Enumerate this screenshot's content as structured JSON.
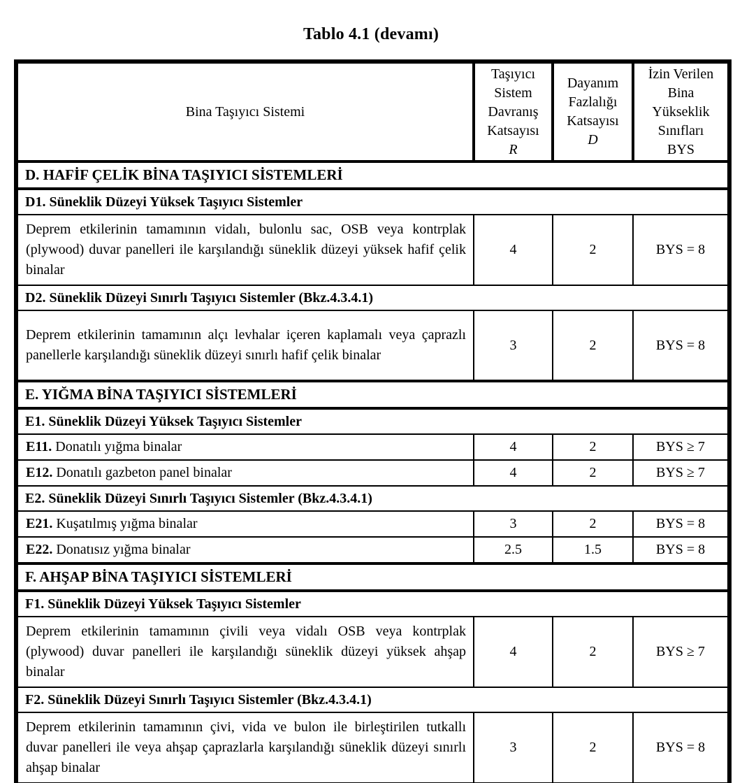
{
  "colors": {
    "text": "#000000",
    "background": "#ffffff",
    "border": "#000000"
  },
  "title": "Tablo 4.1 (devamı)",
  "header": {
    "col1": "Bina Taşıyıcı Sistemi",
    "col2": {
      "l1": "Taşıyıcı",
      "l2": "Sistem",
      "l3": "Davranış",
      "l4": "Katsayısı",
      "sym": "R"
    },
    "col3": {
      "l1": "Dayanım",
      "l2": "Fazlalığı",
      "l3": "Katsayısı",
      "sym": "D"
    },
    "col4": {
      "l1": "İzin Verilen",
      "l2": "Bina",
      "l3": "Yükseklik",
      "l4": "Sınıfları",
      "l5": "BYS"
    }
  },
  "rows": {
    "d": {
      "label": "D. HAFİF ÇELİK BİNA TAŞIYICI SİSTEMLERİ"
    },
    "d1": {
      "label": "D1. Süneklik Düzeyi Yüksek Taşıyıcı Sistemler"
    },
    "d1i": {
      "desc": "Deprem etkilerinin tamamının vidalı, bulonlu sac, OSB veya kontrplak (plywood) duvar panelleri ile karşılandığı süneklik düzeyi yüksek hafif çelik binalar",
      "r": "4",
      "d": "2",
      "bys": "BYS = 8"
    },
    "d2": {
      "label": "D2. Süneklik Düzeyi Sınırlı Taşıyıcı Sistemler (Bkz.4.3.4.1)"
    },
    "d2i": {
      "desc": "Deprem etkilerinin tamamının alçı levhalar içeren kaplamalı veya çaprazlı panellerle karşılandığı süneklik düzeyi sınırlı hafif çelik binalar",
      "r": "3",
      "d": "2",
      "bys": "BYS = 8"
    },
    "e": {
      "label": "E. YIĞMA BİNA TAŞIYICI SİSTEMLERİ"
    },
    "e1": {
      "label": "E1. Süneklik Düzeyi Yüksek Taşıyıcı Sistemler"
    },
    "e11": {
      "code": "E11.",
      "desc": "Donatılı yığma binalar",
      "r": "4",
      "d": "2",
      "bys": "BYS ≥ 7"
    },
    "e12": {
      "code": "E12.",
      "desc": "Donatılı gazbeton panel binalar",
      "r": "4",
      "d": "2",
      "bys": "BYS ≥ 7"
    },
    "e2": {
      "label": "E2. Süneklik Düzeyi Sınırlı Taşıyıcı Sistemler (Bkz.4.3.4.1)"
    },
    "e21": {
      "code": "E21.",
      "desc": "Kuşatılmış yığma binalar",
      "r": "3",
      "d": "2",
      "bys": "BYS = 8"
    },
    "e22": {
      "code": "E22.",
      "desc": "Donatısız yığma binalar",
      "r": "2.5",
      "d": "1.5",
      "bys": "BYS = 8"
    },
    "f": {
      "label": "F. AHŞAP BİNA TAŞIYICI SİSTEMLERİ"
    },
    "f1": {
      "label": "F1. Süneklik Düzeyi Yüksek Taşıyıcı Sistemler"
    },
    "f1i": {
      "desc": "Deprem etkilerinin tamamının çivili veya vidalı OSB veya kontrplak (plywood) duvar panelleri ile karşılandığı süneklik düzeyi yüksek ahşap binalar",
      "r": "4",
      "d": "2",
      "bys": "BYS ≥ 7"
    },
    "f2": {
      "label": "F2. Süneklik Düzeyi Sınırlı Taşıyıcı Sistemler (Bkz.4.3.4.1)"
    },
    "f2i": {
      "desc": "Deprem etkilerinin tamamının çivi, vida ve bulon ile birleştirilen tutkallı duvar panelleri ile veya ahşap çaprazlarla karşılandığı süneklik düzeyi sınırlı ahşap binalar",
      "r": "3",
      "d": "2",
      "bys": "BYS = 8"
    }
  }
}
